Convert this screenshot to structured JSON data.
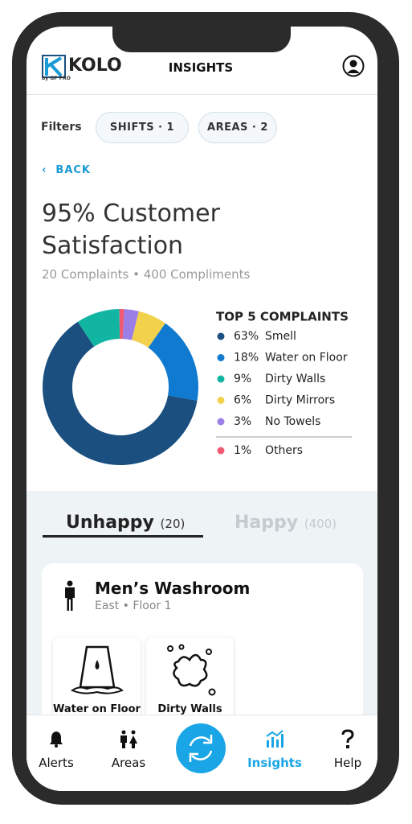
{
  "header": {
    "brand": "KOLO",
    "brand_sub": "by GP PRO",
    "title": "INSIGHTS"
  },
  "filters": {
    "label": "Filters",
    "chips": [
      "SHIFTS · 1",
      "AREAS · 2"
    ]
  },
  "back": "BACK",
  "summary": {
    "title": "95% Customer Satisfaction",
    "subtitle": "20 Complaints • 400 Compliments"
  },
  "chart_data": {
    "type": "pie",
    "donut": true,
    "title": "TOP 5 COMPLAINTS",
    "categories": [
      "Smell",
      "Water on Floor",
      "Dirty Walls",
      "Dirty Mirrors",
      "No Towels",
      "Others"
    ],
    "values": [
      63,
      18,
      9,
      6,
      3,
      1
    ],
    "value_labels": [
      "63%",
      "18%",
      "9%",
      "6%",
      "3%",
      "1%"
    ],
    "colors": [
      "#1a4f80",
      "#0f7ad0",
      "#12b5a1",
      "#f2d14d",
      "#9b7fe6",
      "#f05a73"
    ]
  },
  "tabs": [
    {
      "label": "Unhappy",
      "count": "(20)"
    },
    {
      "label": "Happy",
      "count": "(400)"
    }
  ],
  "card": {
    "title": "Men’s Washroom",
    "subtitle": "East • Floor 1",
    "issues": [
      "Water on Floor",
      "Dirty Walls"
    ]
  },
  "nav": [
    "Alerts",
    "Areas",
    "Insights",
    "Help"
  ]
}
